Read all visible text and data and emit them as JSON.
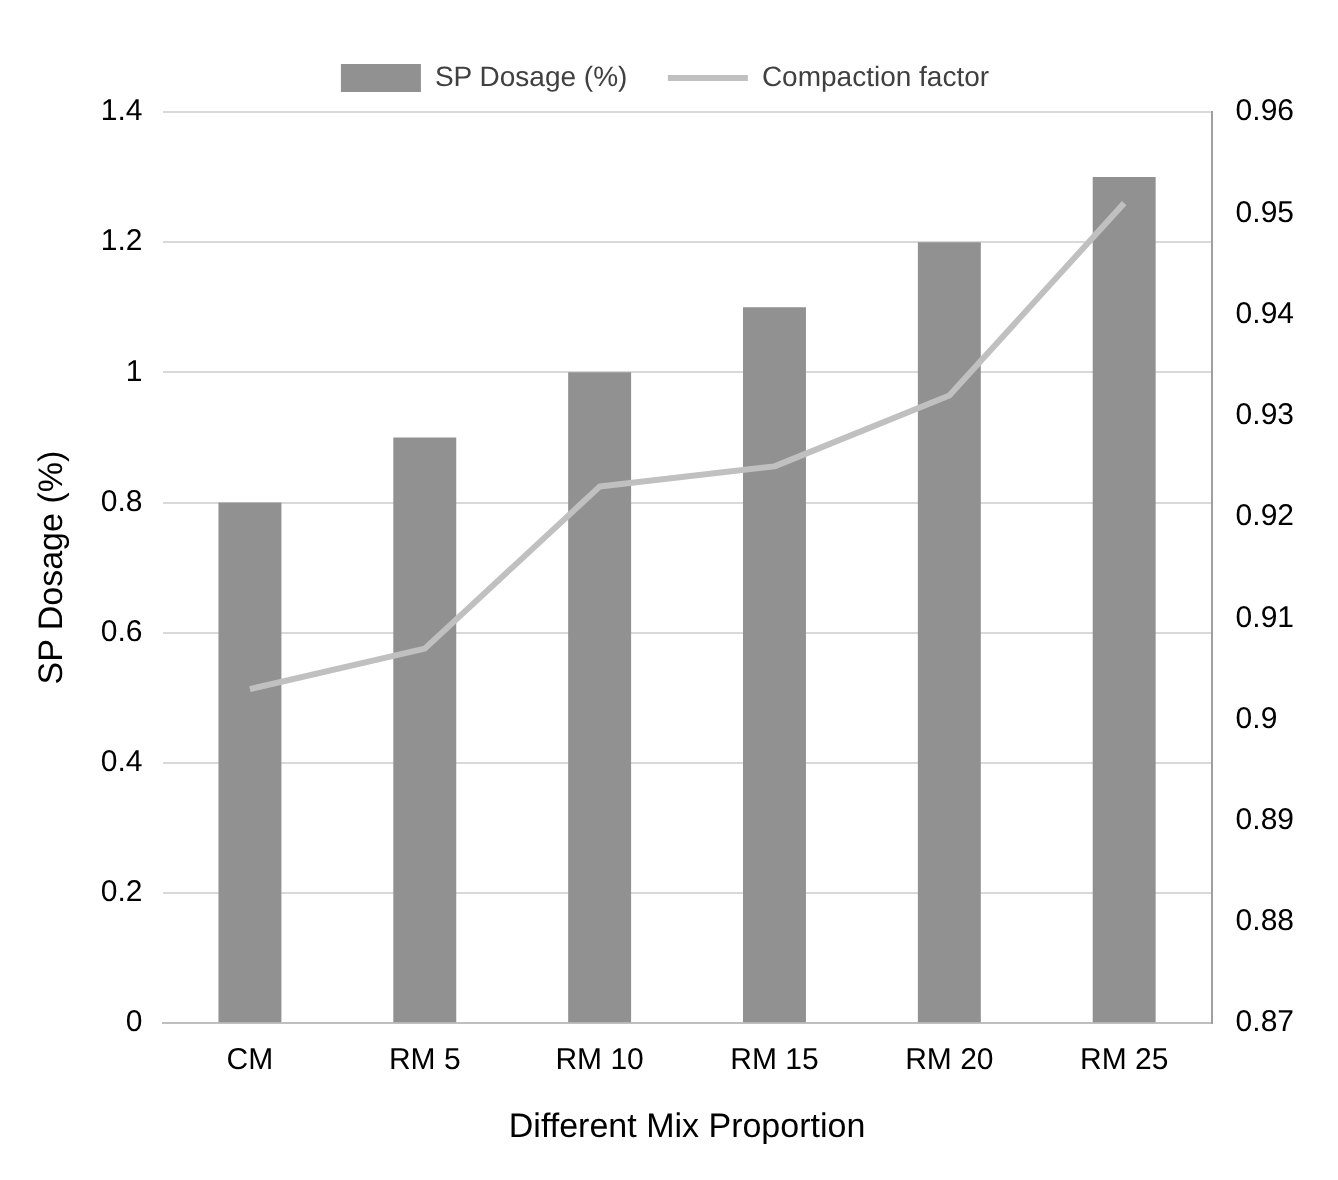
{
  "chart_data": {
    "type": "bar",
    "categories": [
      "CM",
      "RM 5",
      "RM 10",
      "RM 15",
      "RM 20",
      "RM 25"
    ],
    "series": [
      {
        "name": "SP Dosage (%)",
        "color": "#919191",
        "values": [
          0.8,
          0.9,
          1.0,
          1.1,
          1.2,
          1.3
        ]
      },
      {
        "name": "Compaction factor",
        "type": "line",
        "axis": "y2",
        "color": "#c0c0c0",
        "values": [
          0.903,
          0.907,
          0.923,
          0.925,
          0.932,
          0.951
        ]
      }
    ],
    "xlabel": "Different Mix Proportion",
    "ylabel": "SP Dosage (%)",
    "ylim": [
      0,
      1.4
    ],
    "yticks": [
      0,
      0.2,
      0.4,
      0.6,
      0.8,
      1,
      1.2,
      1.4
    ],
    "y2lim": [
      0.87,
      0.96
    ],
    "y2ticks": [
      0.87,
      0.88,
      0.89,
      0.9,
      0.91,
      0.92,
      0.93,
      0.94,
      0.95,
      0.96
    ],
    "grid": "y",
    "legend": "top",
    "marker": "none"
  }
}
